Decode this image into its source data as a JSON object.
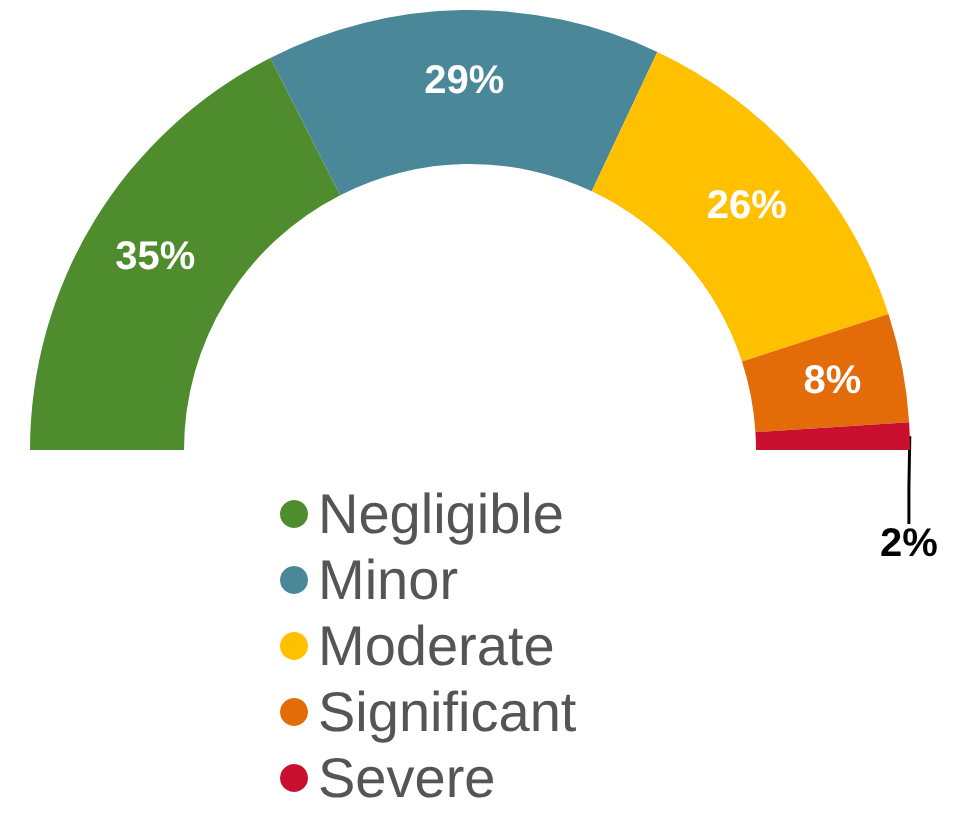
{
  "chart_data": {
    "type": "donut",
    "categories": [
      "Negligible",
      "Minor",
      "Moderate",
      "Significant",
      "Severe"
    ],
    "values": [
      35,
      29,
      26,
      8,
      2
    ],
    "value_labels": [
      "35%",
      "29%",
      "26%",
      "8%",
      "2%"
    ],
    "colors": [
      "#4f8c2e",
      "#4a8799",
      "#ffc000",
      "#e36c09",
      "#c8102e"
    ],
    "legend": "bottom"
  }
}
